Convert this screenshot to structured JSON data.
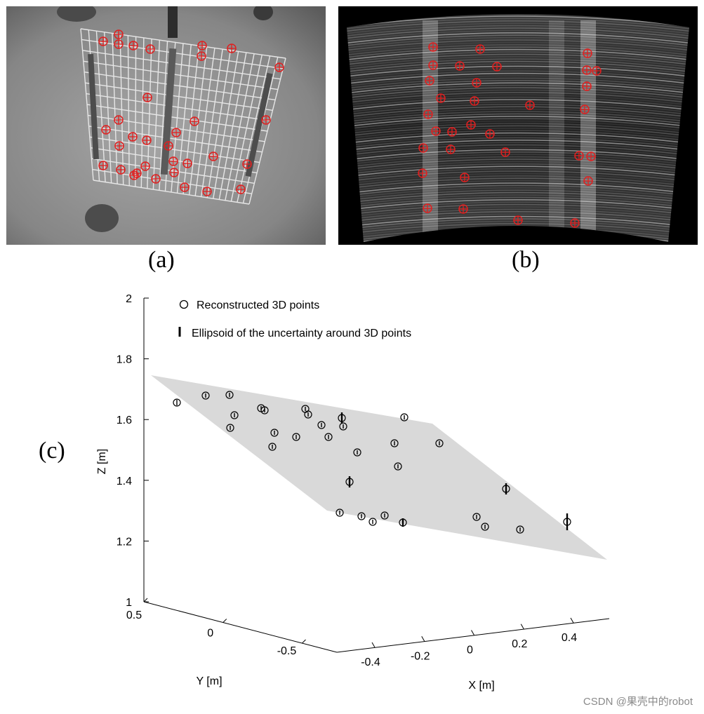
{
  "subfigures": {
    "a_label": "(a)",
    "b_label": "(b)",
    "c_label": "(c)"
  },
  "colors": {
    "marker_red": "#e02020",
    "plane_gray": "#d9d9d9",
    "camera_bg": "#7d7d7d",
    "sonar_bg": "#000000"
  },
  "panel_a": {
    "description_icon": "camera-grid-image",
    "feature_count": 34
  },
  "panel_b": {
    "description_icon": "sonar-fan-image",
    "feature_count": 34
  },
  "chart_data": {
    "type": "scatter",
    "title": "",
    "xlabel": "X [m]",
    "ylabel": "Y [m]",
    "zlabel": "Z [m]",
    "xticks": [
      "-0.4",
      "-0.2",
      "0",
      "0.2",
      "0.4"
    ],
    "yticks": [
      "0.5",
      "0",
      "-0.5"
    ],
    "zticks": [
      "1",
      "1.2",
      "1.4",
      "1.6",
      "1.8",
      "2"
    ],
    "xlim": [
      -0.5,
      0.5
    ],
    "ylim": [
      -0.5,
      0.5
    ],
    "zlim": [
      1,
      2
    ],
    "legend": [
      {
        "name": "Reconstructed 3D points",
        "marker": "circle"
      },
      {
        "name": "Ellipsoid of the uncertainty around 3D points",
        "marker": "ellipsoid"
      }
    ],
    "legend_position": "top-left",
    "grid": false
  },
  "watermark": "CSDN @果壳中的robot"
}
